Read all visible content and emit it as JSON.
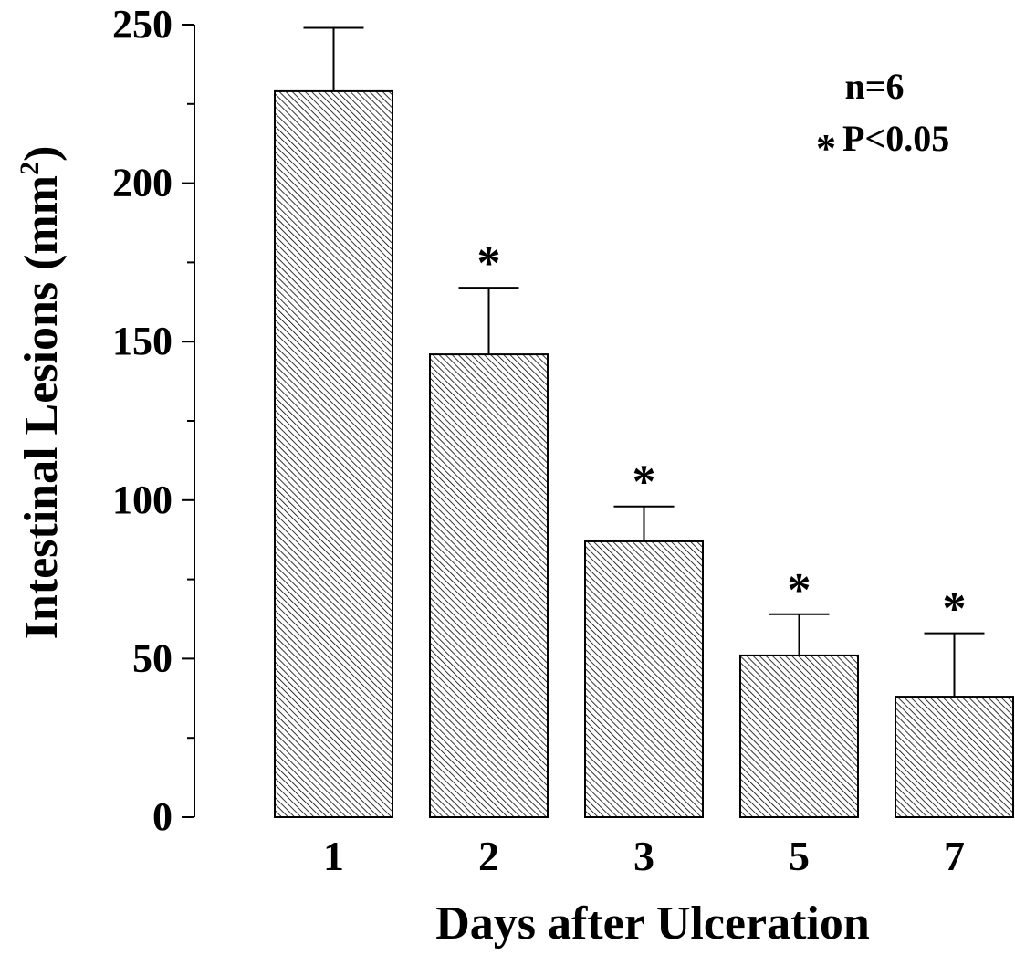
{
  "chart_data": {
    "type": "bar",
    "categories": [
      "1",
      "2",
      "3",
      "5",
      "7"
    ],
    "values": [
      229,
      146,
      87,
      51,
      38
    ],
    "errors": [
      20,
      21,
      11,
      13,
      20
    ],
    "significant": [
      false,
      true,
      true,
      true,
      true
    ],
    "xlabel": "Days after Ulceration",
    "ylabel": "Intestinal Lesions (mm",
    "ylabel_superscript": "2",
    "ylabel_suffix": ")",
    "ylim": [
      0,
      250
    ],
    "yticks": [
      0,
      50,
      100,
      150,
      200,
      250
    ],
    "yticks_minor_step": 25,
    "bar_fill_pattern": "diagonal-hatch",
    "bar_stroke_color": "#000000",
    "grid": false,
    "annotations": {
      "n_label": "n=6",
      "significance_symbol": "*",
      "p_label": "P<0.05"
    }
  }
}
